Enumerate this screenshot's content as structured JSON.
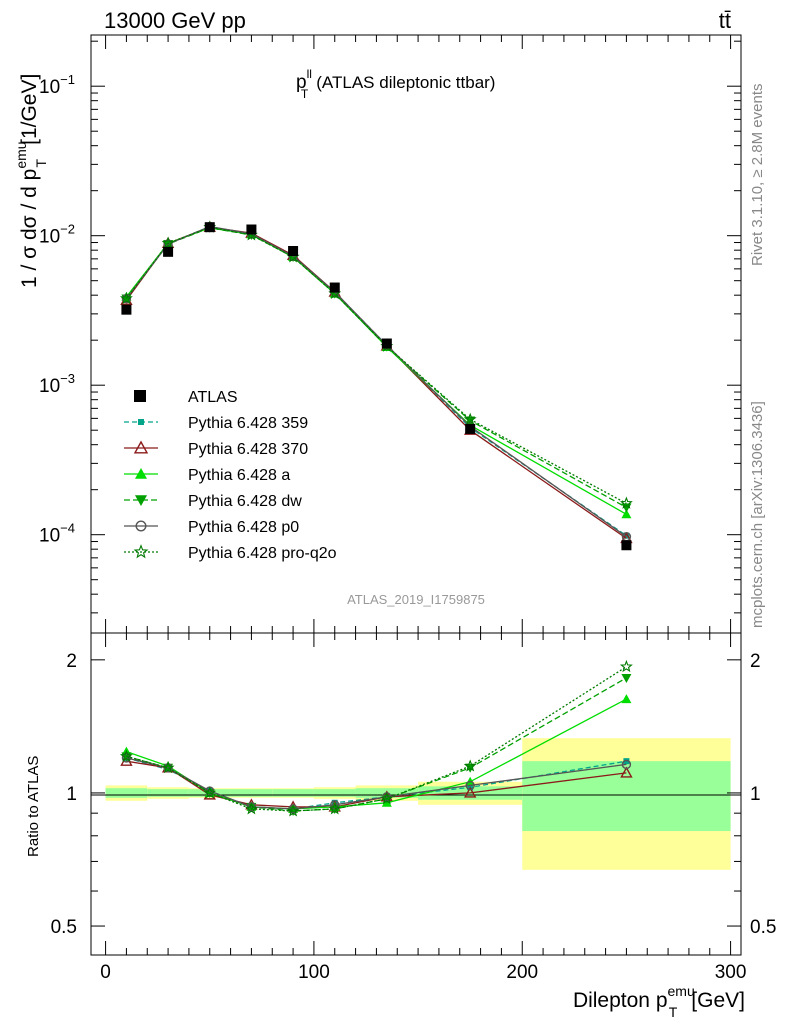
{
  "header": {
    "left": "13000 GeV pp",
    "right": "tt̄"
  },
  "side": {
    "rivet": "Rivet 3.1.10, ≥ 2.8M events",
    "mcplots": "mcplots.cern.ch [arXiv:1306.3436]"
  },
  "chart_data": [
    {
      "type": "scatter",
      "title_main": "p",
      "title_sup": "ll",
      "title_sub": "T",
      "title_rest": "(ATLAS dileptonic ttbar)",
      "analysis_id": "ATLAS_2019_I1759875",
      "ylabel_pre": "1 / σ  dσ / d p",
      "ylabel_sup": "emu",
      "ylabel_sub": "T",
      "ylabel_post": "[1/GeV]",
      "yscale": "log",
      "ylim": [
        2.2e-05,
        0.22
      ],
      "xlim": [
        -7,
        305
      ],
      "yticks": [
        {
          "v": 0.1,
          "base": "10",
          "exp": "−1"
        },
        {
          "v": 0.01,
          "base": "10",
          "exp": "−2"
        },
        {
          "v": 0.001,
          "base": "10",
          "exp": "−3"
        },
        {
          "v": 0.0001,
          "base": "10",
          "exp": "−4"
        }
      ],
      "x": [
        10,
        30,
        50,
        70,
        90,
        110,
        135,
        175,
        250
      ],
      "data": {
        "name": "ATLAS",
        "color": "#000000",
        "values": [
          0.0032,
          0.0078,
          0.0114,
          0.011,
          0.0079,
          0.0045,
          0.0019,
          0.00051,
          8.5e-05
        ]
      },
      "series": [
        {
          "name": "Pythia 6.428 359",
          "color": "#00a58a",
          "dash": "5,3",
          "marker": "square-small",
          "values": [
            0.0038,
            0.0088,
            0.0115,
            0.0102,
            0.0073,
            0.0042,
            0.00185,
            0.00052,
            9.85e-05
          ]
        },
        {
          "name": "Pythia 6.428 370",
          "color": "#8b1a1a",
          "dash": "",
          "marker": "triangle-open",
          "values": [
            0.0037,
            0.0089,
            0.0114,
            0.0104,
            0.0074,
            0.0042,
            0.00183,
            0.0005,
            9.45e-05
          ]
        },
        {
          "name": "Pythia 6.428 a",
          "color": "#00dd00",
          "dash": "",
          "marker": "triangle-filled",
          "values": [
            0.0039,
            0.0089,
            0.0113,
            0.0102,
            0.0072,
            0.0041,
            0.0018,
            0.00054,
            0.000137
          ]
        },
        {
          "name": "Pythia 6.428 dw",
          "color": "#00a000",
          "dash": "6,3",
          "marker": "triangle-down",
          "values": [
            0.0038,
            0.0088,
            0.0113,
            0.0101,
            0.0072,
            0.0041,
            0.00181,
            0.00058,
            0.000152
          ]
        },
        {
          "name": "Pythia 6.428 p0",
          "color": "#555555",
          "dash": "",
          "marker": "circle-open",
          "values": [
            0.0038,
            0.0088,
            0.0115,
            0.0103,
            0.0073,
            0.0042,
            0.00185,
            0.00053,
            9.7e-05
          ]
        },
        {
          "name": "Pythia 6.428 pro-q2o",
          "color": "#007a00",
          "dash": "2,2",
          "marker": "star",
          "values": [
            0.0038,
            0.0089,
            0.0114,
            0.0101,
            0.0072,
            0.0041,
            0.00182,
            0.00059,
            0.000162
          ]
        }
      ]
    },
    {
      "type": "scatter",
      "ylabel": "Ratio to ATLAS",
      "yscale": "log",
      "ylim": [
        0.43,
        2.3
      ],
      "xlim": [
        -7,
        305
      ],
      "yticks": [
        "0.5",
        "1",
        "2"
      ],
      "xlabel_pre": "Dilepton p",
      "xlabel_sup": "emu",
      "xlabel_sub": "T",
      "xlabel_post": "[GeV]",
      "xticks": [
        "0",
        "100",
        "200",
        "300"
      ],
      "bin_edges": [
        0,
        20,
        40,
        60,
        80,
        100,
        120,
        150,
        200,
        300
      ],
      "band_stat": [
        0.025,
        0.02,
        0.02,
        0.02,
        0.02,
        0.02,
        0.025,
        0.035,
        0.18
      ],
      "band_total": [
        0.04,
        0.03,
        0.025,
        0.025,
        0.025,
        0.03,
        0.04,
        0.06,
        0.33
      ],
      "x": [
        10,
        30,
        50,
        70,
        90,
        110,
        135,
        175,
        250
      ],
      "series": [
        {
          "name": "Pythia 6.428 359",
          "values": [
            1.2,
            1.13,
            1.01,
            0.93,
            0.92,
            0.95,
            0.98,
            1.03,
            1.18
          ]
        },
        {
          "name": "Pythia 6.428 370",
          "values": [
            1.18,
            1.14,
            0.99,
            0.94,
            0.93,
            0.93,
            0.98,
            1.0,
            1.11
          ]
        },
        {
          "name": "Pythia 6.428 a",
          "values": [
            1.24,
            1.15,
            1.0,
            0.93,
            0.92,
            0.93,
            0.95,
            1.06,
            1.63
          ]
        },
        {
          "name": "Pythia 6.428 dw",
          "values": [
            1.21,
            1.14,
            1.0,
            0.93,
            0.91,
            0.92,
            0.97,
            1.14,
            1.82
          ]
        },
        {
          "name": "Pythia 6.428 p0",
          "values": [
            1.2,
            1.14,
            1.01,
            0.93,
            0.92,
            0.94,
            0.98,
            1.04,
            1.16
          ]
        },
        {
          "name": "Pythia 6.428 pro-q2o",
          "values": [
            1.21,
            1.14,
            1.0,
            0.92,
            0.91,
            0.92,
            0.97,
            1.15,
            1.93
          ]
        }
      ]
    }
  ]
}
